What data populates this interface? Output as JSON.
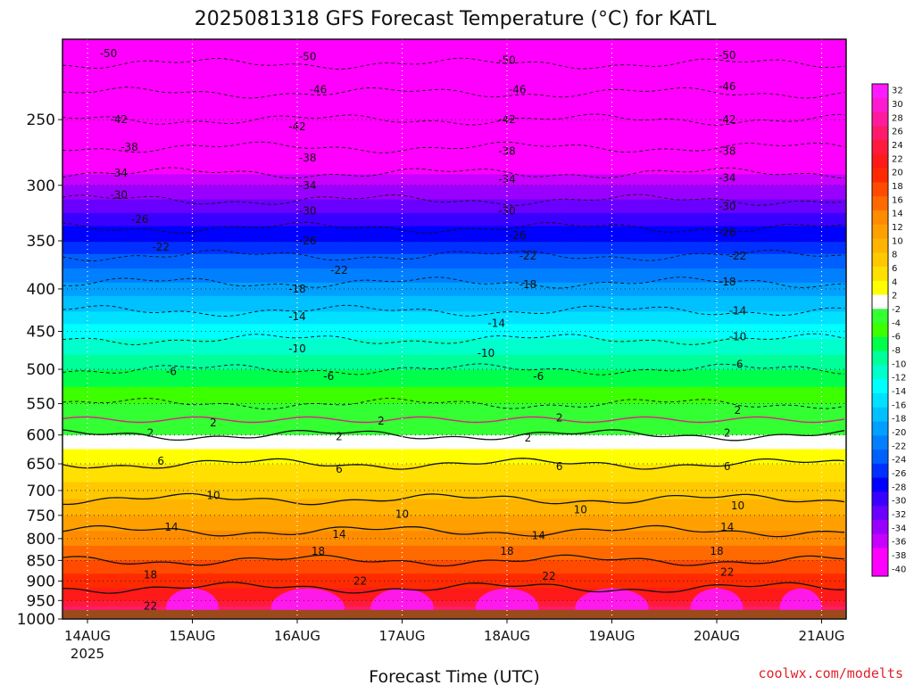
{
  "title": "2025081318 GFS Forecast Temperature (°C) for KATL",
  "xlabel": "Forecast Time (UTC)",
  "credit": "coolwx.com/modelts",
  "chart_data": {
    "type": "heatmap",
    "title": "2025081318 GFS Forecast Temperature (°C) for KATL",
    "xlabel": "Forecast Time (UTC)",
    "ylabel": "",
    "x_ticks": [
      "14AUG",
      "15AUG",
      "16AUG",
      "17AUG",
      "18AUG",
      "19AUG",
      "20AUG",
      "21AUG"
    ],
    "x_year_label": "2025",
    "y_ticks": [
      250,
      300,
      350,
      400,
      450,
      500,
      550,
      600,
      650,
      700,
      750,
      800,
      850,
      900,
      950,
      1000
    ],
    "y_scale": "log",
    "ylim": [
      200,
      1000
    ],
    "grid": true,
    "ground_level_hpa": 975,
    "temperature_profile_hpa_c": [
      [
        200,
        -53
      ],
      [
        250,
        -42
      ],
      [
        300,
        -32
      ],
      [
        350,
        -24
      ],
      [
        400,
        -17
      ],
      [
        450,
        -11
      ],
      [
        500,
        -6
      ],
      [
        550,
        -2
      ],
      [
        600,
        2
      ],
      [
        650,
        6
      ],
      [
        700,
        9
      ],
      [
        750,
        12
      ],
      [
        800,
        15
      ],
      [
        850,
        18
      ],
      [
        900,
        21
      ],
      [
        950,
        24
      ],
      [
        975,
        27
      ]
    ],
    "contour_levels": [
      -50,
      -46,
      -42,
      -38,
      -34,
      -30,
      -26,
      -22,
      -18,
      -14,
      -10,
      -6,
      -2,
      2,
      6,
      10,
      14,
      18,
      22
    ],
    "contour_labels": [
      {
        "text": "-50",
        "day": 0.2,
        "p": 208
      },
      {
        "text": "-50",
        "day": 2.1,
        "p": 210
      },
      {
        "text": "-50",
        "day": 4.0,
        "p": 212
      },
      {
        "text": "-50",
        "day": 6.1,
        "p": 209
      },
      {
        "text": "-46",
        "day": 2.2,
        "p": 230
      },
      {
        "text": "-46",
        "day": 4.1,
        "p": 230
      },
      {
        "text": "-46",
        "day": 6.1,
        "p": 228
      },
      {
        "text": "-42",
        "day": 0.3,
        "p": 250
      },
      {
        "text": "-42",
        "day": 2.0,
        "p": 255
      },
      {
        "text": "-42",
        "day": 4.0,
        "p": 250
      },
      {
        "text": "-42",
        "day": 6.1,
        "p": 250
      },
      {
        "text": "-38",
        "day": 0.4,
        "p": 270
      },
      {
        "text": "-38",
        "day": 2.1,
        "p": 278
      },
      {
        "text": "-38",
        "day": 4.0,
        "p": 273
      },
      {
        "text": "-38",
        "day": 6.1,
        "p": 273
      },
      {
        "text": "-34",
        "day": 0.3,
        "p": 290
      },
      {
        "text": "-34",
        "day": 2.1,
        "p": 300
      },
      {
        "text": "-34",
        "day": 4.0,
        "p": 295
      },
      {
        "text": "-34",
        "day": 6.1,
        "p": 294
      },
      {
        "text": "-30",
        "day": 0.3,
        "p": 308
      },
      {
        "text": "-30",
        "day": 2.1,
        "p": 322
      },
      {
        "text": "-30",
        "day": 4.0,
        "p": 322
      },
      {
        "text": "-30",
        "day": 6.1,
        "p": 318
      },
      {
        "text": "-26",
        "day": 0.5,
        "p": 330
      },
      {
        "text": "-26",
        "day": 2.1,
        "p": 350
      },
      {
        "text": "-26",
        "day": 4.1,
        "p": 345
      },
      {
        "text": "-26",
        "day": 6.1,
        "p": 342
      },
      {
        "text": "-22",
        "day": 0.7,
        "p": 356
      },
      {
        "text": "-22",
        "day": 2.4,
        "p": 380
      },
      {
        "text": "-22",
        "day": 4.2,
        "p": 365
      },
      {
        "text": "-22",
        "day": 6.2,
        "p": 365
      },
      {
        "text": "-18",
        "day": 2.0,
        "p": 400
      },
      {
        "text": "-18",
        "day": 4.2,
        "p": 395
      },
      {
        "text": "-18",
        "day": 6.1,
        "p": 392
      },
      {
        "text": "-14",
        "day": 2.0,
        "p": 432
      },
      {
        "text": "-14",
        "day": 3.9,
        "p": 440
      },
      {
        "text": "-14",
        "day": 6.2,
        "p": 425
      },
      {
        "text": "-10",
        "day": 2.0,
        "p": 472
      },
      {
        "text": "-10",
        "day": 3.8,
        "p": 478
      },
      {
        "text": "-10",
        "day": 6.2,
        "p": 457
      },
      {
        "text": "-6",
        "day": 0.8,
        "p": 503
      },
      {
        "text": "-6",
        "day": 2.3,
        "p": 510
      },
      {
        "text": "-6",
        "day": 4.3,
        "p": 510
      },
      {
        "text": "-6",
        "day": 6.2,
        "p": 493
      },
      {
        "text": "2",
        "day": 1.2,
        "p": 580
      },
      {
        "text": "2",
        "day": 2.8,
        "p": 577
      },
      {
        "text": "2",
        "day": 4.5,
        "p": 572
      },
      {
        "text": "2",
        "day": 6.2,
        "p": 560
      },
      {
        "text": "2",
        "day": 0.6,
        "p": 597
      },
      {
        "text": "2",
        "day": 2.4,
        "p": 603
      },
      {
        "text": "2",
        "day": 4.2,
        "p": 605
      },
      {
        "text": "2",
        "day": 6.1,
        "p": 597
      },
      {
        "text": "6",
        "day": 0.7,
        "p": 645
      },
      {
        "text": "6",
        "day": 2.4,
        "p": 660
      },
      {
        "text": "6",
        "day": 4.5,
        "p": 655
      },
      {
        "text": "6",
        "day": 6.1,
        "p": 655
      },
      {
        "text": "10",
        "day": 1.2,
        "p": 710
      },
      {
        "text": "10",
        "day": 3.0,
        "p": 748
      },
      {
        "text": "10",
        "day": 4.7,
        "p": 738
      },
      {
        "text": "10",
        "day": 6.2,
        "p": 730
      },
      {
        "text": "14",
        "day": 0.8,
        "p": 775
      },
      {
        "text": "14",
        "day": 2.4,
        "p": 790
      },
      {
        "text": "14",
        "day": 4.3,
        "p": 793
      },
      {
        "text": "14",
        "day": 6.1,
        "p": 775
      },
      {
        "text": "18",
        "day": 0.6,
        "p": 885
      },
      {
        "text": "18",
        "day": 2.2,
        "p": 828
      },
      {
        "text": "18",
        "day": 4.0,
        "p": 828
      },
      {
        "text": "18",
        "day": 6.0,
        "p": 828
      },
      {
        "text": "22",
        "day": 0.6,
        "p": 965
      },
      {
        "text": "22",
        "day": 2.6,
        "p": 900
      },
      {
        "text": "22",
        "day": 4.4,
        "p": 888
      },
      {
        "text": "22",
        "day": 6.1,
        "p": 878
      }
    ],
    "colorbar_labels": [
      32,
      30,
      28,
      26,
      24,
      22,
      20,
      18,
      16,
      14,
      12,
      10,
      8,
      6,
      4,
      2,
      -2,
      -4,
      -6,
      -8,
      -10,
      -12,
      -14,
      -16,
      -18,
      -20,
      -22,
      -24,
      -26,
      -28,
      -30,
      -32,
      -34,
      -36,
      -38,
      -40
    ],
    "colorbar_colors": [
      "#ff1aff",
      "#ff1ad1",
      "#ff1a9e",
      "#ff1a6a",
      "#ff1a3d",
      "#ff1a1a",
      "#ff2a00",
      "#ff4a00",
      "#ff6a00",
      "#ff8c00",
      "#ffa000",
      "#ffb400",
      "#ffc800",
      "#ffe000",
      "#ffff00",
      "#ffffff",
      "#33ff33",
      "#3cff00",
      "#00ff4a",
      "#00ff99",
      "#00ffcc",
      "#00ffff",
      "#00e0ff",
      "#00c0ff",
      "#00a0ff",
      "#0080ff",
      "#0060ff",
      "#0030ff",
      "#0000ff",
      "#3a00ff",
      "#6a00ff",
      "#9a00ff",
      "#c800ff",
      "#ff00ff",
      "#ff00ff"
    ]
  }
}
